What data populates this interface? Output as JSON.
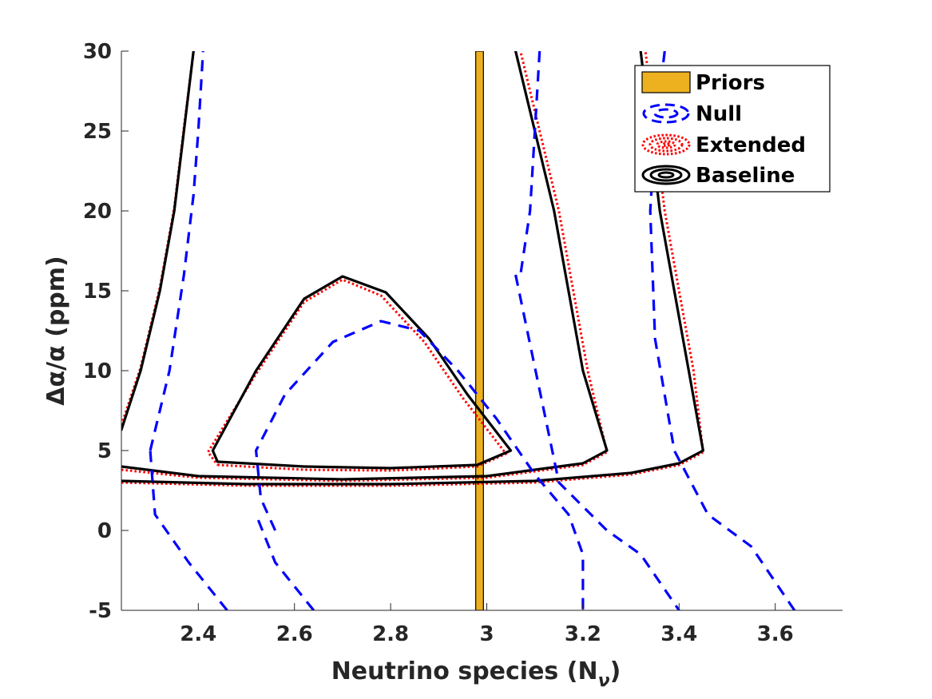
{
  "chart_data": {
    "type": "line",
    "title": "",
    "xlabel": "Neutrino species (N",
    "xlabel_subscript": "ν",
    "xlabel_close": ")",
    "ylabel": "Δα/α (ppm)",
    "xlim": [
      2.24,
      3.74
    ],
    "ylim": [
      -5,
      30
    ],
    "x_ticks": [
      2.4,
      2.6,
      2.8,
      3,
      3.2,
      3.4,
      3.6
    ],
    "x_tick_labels": [
      "2.4",
      "2.6",
      "2.8",
      "3",
      "3.2",
      "3.4",
      "3.6"
    ],
    "y_ticks": [
      -5,
      0,
      5,
      10,
      15,
      20,
      25,
      30
    ],
    "y_tick_labels": [
      "-5",
      "0",
      "5",
      "10",
      "15",
      "20",
      "25",
      "30"
    ],
    "grid": false,
    "legend_position": "top-right",
    "colors": {
      "priors": "#EDB120",
      "null": "#0000FF",
      "extended": "#FF0000",
      "baseline": "#000000"
    },
    "priors": {
      "label": "Priors",
      "x_min": 2.977,
      "x_max": 2.993
    },
    "legend": [
      "Priors",
      "Null",
      "Extended",
      "Baseline"
    ],
    "series": [
      {
        "name": "Baseline",
        "style": "solid",
        "contours": [
          [
            [
              2.44,
              4.3
            ],
            [
              2.62,
              4.0
            ],
            [
              2.8,
              3.9
            ],
            [
              2.98,
              4.1
            ],
            [
              3.05,
              5.0
            ],
            [
              2.96,
              8.5
            ],
            [
              2.88,
              12.0
            ],
            [
              2.79,
              14.9
            ],
            [
              2.7,
              15.9
            ],
            [
              2.62,
              14.5
            ],
            [
              2.52,
              10.0
            ],
            [
              2.43,
              5.0
            ],
            [
              2.44,
              4.3
            ]
          ],
          [
            [
              2.24,
              4.0
            ],
            [
              2.4,
              3.4
            ],
            [
              2.7,
              3.2
            ],
            [
              3.0,
              3.4
            ],
            [
              3.2,
              4.2
            ],
            [
              3.25,
              5.0
            ],
            [
              3.2,
              10.0
            ],
            [
              3.14,
              20.0
            ],
            [
              3.1,
              25.0
            ],
            [
              3.06,
              30.0
            ]
          ],
          [
            [
              2.24,
              3.1
            ],
            [
              2.5,
              2.9
            ],
            [
              2.8,
              2.9
            ],
            [
              3.1,
              3.1
            ],
            [
              3.3,
              3.6
            ],
            [
              3.4,
              4.2
            ],
            [
              3.45,
              5.0
            ],
            [
              3.42,
              10.0
            ],
            [
              3.39,
              15.0
            ],
            [
              3.36,
              20.0
            ],
            [
              3.34,
              25.0
            ],
            [
              3.32,
              30.0
            ]
          ],
          [
            [
              2.24,
              6.3
            ],
            [
              2.28,
              10.0
            ],
            [
              2.32,
              15.0
            ],
            [
              2.35,
              20.0
            ],
            [
              2.37,
              25.0
            ],
            [
              2.39,
              30.0
            ]
          ]
        ]
      },
      {
        "name": "Extended",
        "style": "dotted",
        "contours": [
          [
            [
              2.44,
              4.1
            ],
            [
              2.62,
              3.8
            ],
            [
              2.8,
              3.75
            ],
            [
              2.98,
              4.0
            ],
            [
              3.04,
              4.8
            ],
            [
              2.95,
              8.3
            ],
            [
              2.87,
              11.8
            ],
            [
              2.78,
              14.7
            ],
            [
              2.7,
              15.7
            ],
            [
              2.62,
              14.3
            ],
            [
              2.52,
              9.8
            ],
            [
              2.42,
              4.9
            ],
            [
              2.44,
              4.1
            ]
          ],
          [
            [
              2.24,
              3.8
            ],
            [
              2.4,
              3.3
            ],
            [
              2.7,
              3.1
            ],
            [
              3.0,
              3.3
            ],
            [
              3.2,
              4.1
            ],
            [
              3.25,
              4.9
            ],
            [
              3.21,
              10.0
            ],
            [
              3.15,
              20.0
            ],
            [
              3.11,
              25.0
            ],
            [
              3.07,
              30.0
            ]
          ],
          [
            [
              2.24,
              3.0
            ],
            [
              2.5,
              2.8
            ],
            [
              2.8,
              2.8
            ],
            [
              3.1,
              3.0
            ],
            [
              3.3,
              3.5
            ],
            [
              3.4,
              4.1
            ],
            [
              3.45,
              4.9
            ],
            [
              3.43,
              10.0
            ],
            [
              3.4,
              15.0
            ],
            [
              3.37,
              20.0
            ],
            [
              3.35,
              25.0
            ],
            [
              3.33,
              30.0
            ]
          ],
          [
            [
              2.24,
              6.6
            ],
            [
              2.28,
              10.2
            ],
            [
              2.32,
              15.2
            ],
            [
              2.35,
              20.2
            ],
            [
              2.37,
              25.2
            ],
            [
              2.39,
              30.0
            ]
          ]
        ]
      },
      {
        "name": "Null",
        "style": "dashed",
        "contours": [
          [
            [
              2.56,
              0.0
            ],
            [
              2.53,
              2.0
            ],
            [
              2.52,
              5.0
            ],
            [
              2.58,
              8.5
            ],
            [
              2.68,
              11.8
            ],
            [
              2.78,
              13.1
            ],
            [
              2.86,
              12.5
            ],
            [
              2.94,
              10.0
            ],
            [
              3.02,
              7.0
            ],
            [
              3.1,
              3.5
            ],
            [
              3.17,
              1.0
            ],
            [
              3.2,
              -1.5
            ],
            [
              3.2,
              -5.0
            ]
          ],
          [
            [
              2.64,
              -5.0
            ],
            [
              2.56,
              -2.0
            ],
            [
              2.52,
              1.0
            ]
          ],
          [
            [
              2.3,
              5.0
            ],
            [
              2.34,
              10.0
            ],
            [
              2.37,
              16.0
            ],
            [
              2.39,
              21.0
            ],
            [
              2.4,
              25.0
            ],
            [
              2.41,
              30.0
            ]
          ],
          [
            [
              2.46,
              -5.0
            ],
            [
              2.38,
              -2.0
            ],
            [
              2.31,
              1.0
            ],
            [
              2.3,
              5.0
            ]
          ],
          [
            [
              3.06,
              16.0
            ],
            [
              3.15,
              3.0
            ],
            [
              3.25,
              0.0
            ],
            [
              3.32,
              -1.5
            ],
            [
              3.4,
              -5.0
            ]
          ],
          [
            [
              3.11,
              30.0
            ],
            [
              3.1,
              25.0
            ],
            [
              3.09,
              20.0
            ],
            [
              3.07,
              16.0
            ]
          ],
          [
            [
              3.37,
              30.0
            ],
            [
              3.35,
              25.0
            ],
            [
              3.34,
              20.0
            ],
            [
              3.35,
              12.0
            ],
            [
              3.39,
              5.0
            ],
            [
              3.46,
              1.0
            ],
            [
              3.55,
              -1.0
            ],
            [
              3.64,
              -5.0
            ]
          ]
        ]
      }
    ]
  }
}
